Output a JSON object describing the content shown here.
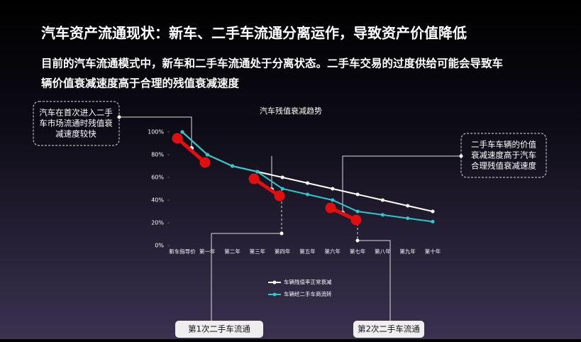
{
  "header": {
    "title": "汽车资产流通现状：新车、二手车流通分离运作，导致资产价值降低",
    "subtitle": [
      "目前的汽车流通模式中，新车和二手车流通处于分离状态。二手车交易的过度供给可能会导致车",
      "辆价值衰减速度高于合理的残值衰减速度"
    ]
  },
  "chart_data": {
    "type": "line",
    "title": "汽车残值衰减趋势",
    "categories": [
      "新车指导价",
      "第一年",
      "第二年",
      "第三年",
      "第四年",
      "第五年",
      "第六年",
      "第七年",
      "第八年",
      "第九年",
      "第十年"
    ],
    "series": [
      {
        "name": "车辆残值率正常衰减",
        "color": "#ffffff",
        "values": [
          100,
          80,
          70,
          65,
          60,
          55,
          50,
          45,
          40,
          35,
          30
        ]
      },
      {
        "name": "车辆经二手车商流转",
        "color": "#2ec8cc",
        "values": [
          100,
          80,
          70,
          65,
          50,
          45,
          40,
          30,
          27,
          24,
          21
        ]
      }
    ],
    "ylim": [
      0,
      100
    ],
    "yticks": [
      {
        "value": 0,
        "label": "0%"
      },
      {
        "value": 20,
        "label": "20%"
      },
      {
        "value": 40,
        "label": "40%"
      },
      {
        "value": 60,
        "label": "60%"
      },
      {
        "value": 80,
        "label": "80%"
      },
      {
        "value": 100,
        "label": "100%"
      }
    ]
  },
  "annotations": {
    "left": [
      "汽车在首次进入二手",
      "车市场流通时残值衰",
      "减速度较快"
    ],
    "right": [
      "二手车车辆的价值",
      "衰减速度高于汽车",
      "合理残值衰减速度"
    ],
    "first": "第1次二手车流通",
    "second": "第2次二手车流通"
  }
}
